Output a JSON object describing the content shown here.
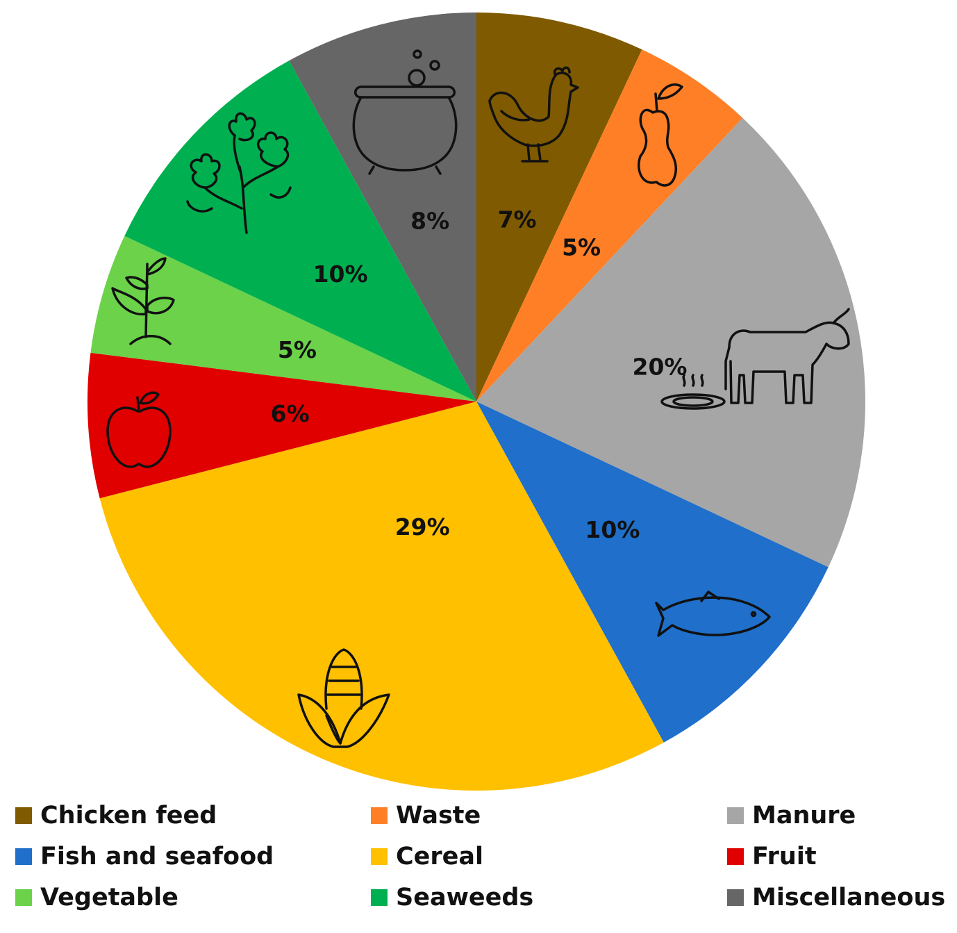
{
  "chart_data": {
    "type": "pie",
    "start_angle_deg": 0,
    "direction": "clockwise",
    "legend_position": "bottom",
    "slices": [
      {
        "label": "Chicken feed",
        "value": 7,
        "value_label": "7%",
        "color": "#7F5A00",
        "icon": "chicken-icon"
      },
      {
        "label": "Waste",
        "value": 5,
        "value_label": "5%",
        "color": "#FF7F27",
        "icon": "apple-core-icon"
      },
      {
        "label": "Manure",
        "value": 20,
        "value_label": "20%",
        "color": "#A6A6A6",
        "icon": "cow-icon"
      },
      {
        "label": "Fish and seafood",
        "value": 10,
        "value_label": "10%",
        "color": "#1F6FCB",
        "icon": "fish-icon"
      },
      {
        "label": "Cereal",
        "value": 29,
        "value_label": "29%",
        "color": "#FFC000",
        "icon": "corn-icon"
      },
      {
        "label": "Fruit",
        "value": 6,
        "value_label": "6%",
        "color": "#E00000",
        "icon": "apple-icon"
      },
      {
        "label": "Vegetable",
        "value": 5,
        "value_label": "5%",
        "color": "#6BD24A",
        "icon": "sprout-icon"
      },
      {
        "label": "Seaweeds",
        "value": 10,
        "value_label": "10%",
        "color": "#00B050",
        "icon": "seaweed-icon"
      },
      {
        "label": "Miscellaneous",
        "value": 8,
        "value_label": "8%",
        "color": "#666666",
        "icon": "cauldron-icon"
      }
    ]
  }
}
